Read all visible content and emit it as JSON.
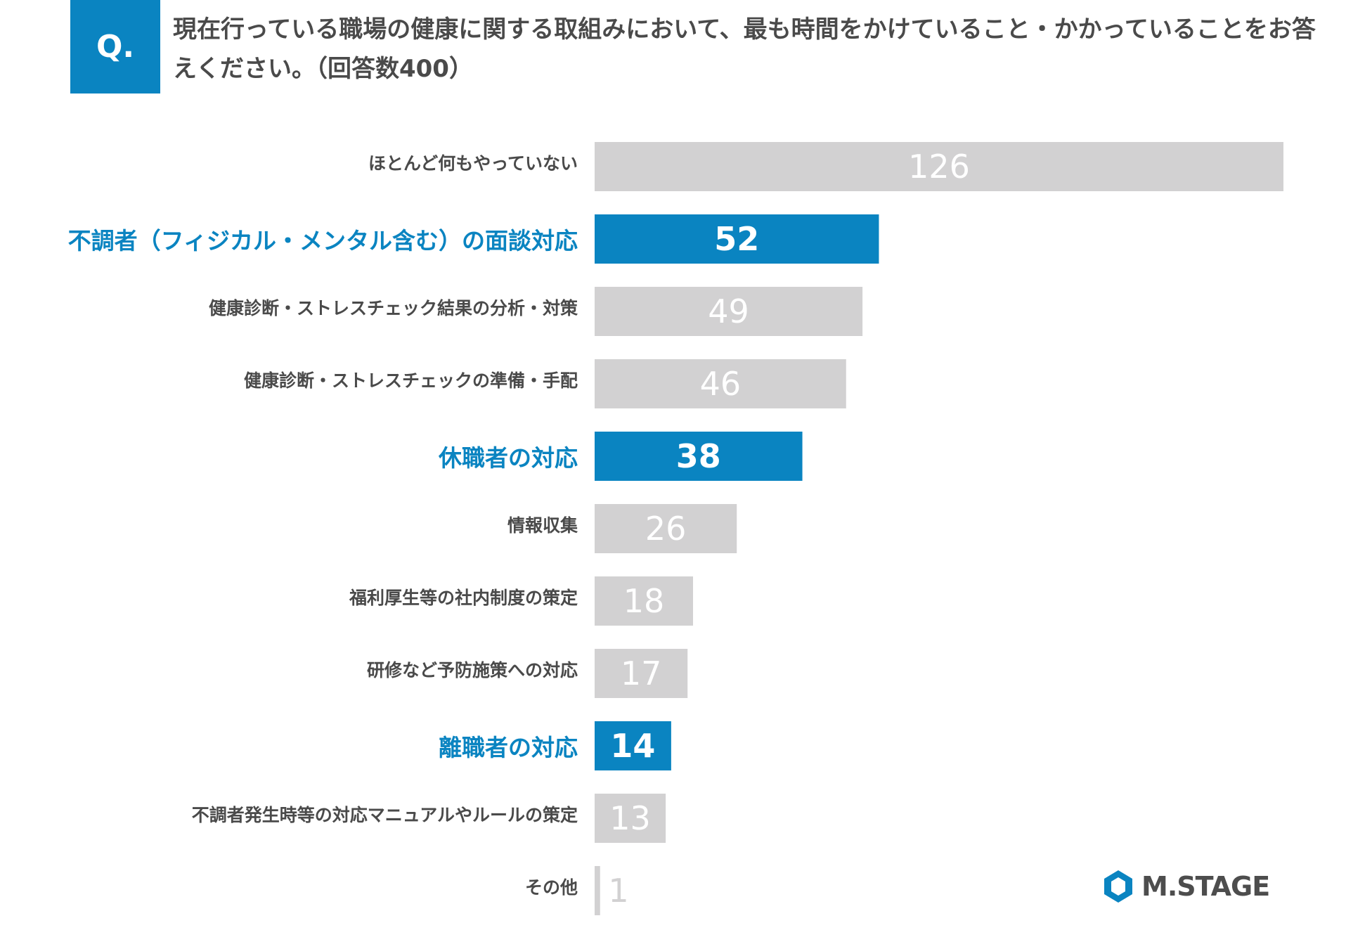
{
  "header": {
    "q_label": "Q.",
    "question": "現在行っている職場の健康に関する取組みにおいて、最も時間をかけていること・かかっていることをお答えください。（回答数400）"
  },
  "logo": {
    "text": "M.STAGE",
    "icon": "mstage-logo-icon"
  },
  "colors": {
    "highlight": "#0a84c1",
    "default_bar": "#d2d1d2",
    "default_label": "#4a4a4a",
    "value_on_gray": "#ffffff"
  },
  "chart_data": {
    "type": "bar",
    "orientation": "horizontal",
    "categories": [
      "ほとんど何もやっていない",
      "不調者（フィジカル・メンタル含む）の面談対応",
      "健康診断・ストレスチェック結果の分析・対策",
      "健康診断・ストレスチェックの準備・手配",
      "休職者の対応",
      "情報収集",
      "福利厚生等の社内制度の策定",
      "研修など予防施策への対応",
      "離職者の対応",
      "不調者発生時等の対応マニュアルやルールの策定",
      "その他"
    ],
    "values": [
      126,
      52,
      49,
      46,
      38,
      26,
      18,
      17,
      14,
      13,
      1
    ],
    "highlighted": [
      false,
      true,
      false,
      false,
      true,
      false,
      false,
      false,
      true,
      false,
      false
    ],
    "grid": false,
    "legend": "none"
  }
}
